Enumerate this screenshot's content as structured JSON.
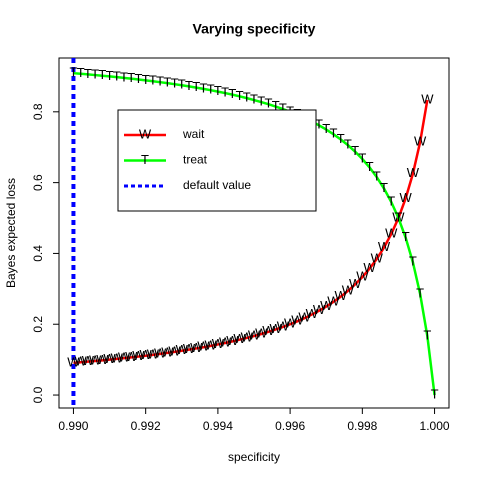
{
  "chart_data": {
    "type": "line",
    "title": "Varying specificity",
    "xlabel": "specificity",
    "ylabel": "Bayes expected loss",
    "x": [
      0.99,
      0.9902,
      0.9904,
      0.9906,
      0.9908,
      0.991,
      0.9912,
      0.9914,
      0.9916,
      0.9918,
      0.992,
      0.9922,
      0.9924,
      0.9926,
      0.9928,
      0.993,
      0.9932,
      0.9934,
      0.9936,
      0.9938,
      0.994,
      0.9942,
      0.9944,
      0.9946,
      0.9948,
      0.995,
      0.9952,
      0.9954,
      0.9956,
      0.9958,
      0.996,
      0.9962,
      0.9964,
      0.9966,
      0.9968,
      0.997,
      0.9972,
      0.9974,
      0.9976,
      0.9978,
      0.998,
      0.9982,
      0.9984,
      0.9986,
      0.9988,
      0.999,
      0.9992,
      0.9994,
      0.9996,
      0.9998,
      1.0
    ],
    "series": [
      {
        "name": "wait",
        "color": "#ff0000",
        "marker": "W",
        "values": [
          0.0909,
          0.0926,
          0.0943,
          0.0962,
          0.098,
          0.1,
          0.102,
          0.1042,
          0.1064,
          0.1087,
          0.1111,
          0.1136,
          0.1163,
          0.119,
          0.122,
          0.125,
          0.1282,
          0.1316,
          0.1351,
          0.1389,
          0.1429,
          0.1471,
          0.1515,
          0.1563,
          0.1613,
          0.1667,
          0.1724,
          0.1786,
          0.1852,
          0.1923,
          0.2,
          0.2083,
          0.2174,
          0.2273,
          0.2381,
          0.25,
          0.2632,
          0.2778,
          0.2941,
          0.3125,
          0.3333,
          0.3571,
          0.3846,
          0.4167,
          0.4545,
          0.5,
          0.5556,
          0.625,
          0.7143,
          0.8333,
          null
        ]
      },
      {
        "name": "treat",
        "color": "#00ff00",
        "marker": "T",
        "values": [
          0.9091,
          0.9074,
          0.9057,
          0.9038,
          0.902,
          0.9,
          0.898,
          0.8958,
          0.8936,
          0.8913,
          0.8889,
          0.8864,
          0.8837,
          0.881,
          0.878,
          0.875,
          0.8718,
          0.8684,
          0.8649,
          0.8611,
          0.8571,
          0.8529,
          0.8485,
          0.8437,
          0.8387,
          0.8333,
          0.8276,
          0.8214,
          0.8148,
          0.8077,
          0.8,
          0.7917,
          0.7826,
          0.7727,
          0.7619,
          0.75,
          0.7368,
          0.7222,
          0.7059,
          0.6875,
          0.6667,
          0.6429,
          0.6154,
          0.5833,
          0.5455,
          0.5,
          0.4444,
          0.375,
          0.2857,
          0.1667,
          0
        ]
      }
    ],
    "vlines": [
      {
        "name": "default value",
        "x": 0.99,
        "color": "#0000ff"
      }
    ],
    "xlim": [
      0.9896,
      1.0004
    ],
    "ylim": [
      -0.0366,
      0.952
    ],
    "xticks": [
      {
        "value": 0.99,
        "label": "0.990"
      },
      {
        "value": 0.992,
        "label": "0.992"
      },
      {
        "value": 0.994,
        "label": "0.994"
      },
      {
        "value": 0.996,
        "label": "0.996"
      },
      {
        "value": 0.998,
        "label": "0.998"
      },
      {
        "value": 1.0,
        "label": "1.000"
      }
    ],
    "yticks": [
      {
        "value": 0,
        "label": "0.0"
      },
      0.2,
      0.4,
      0.6,
      0.8
    ]
  }
}
